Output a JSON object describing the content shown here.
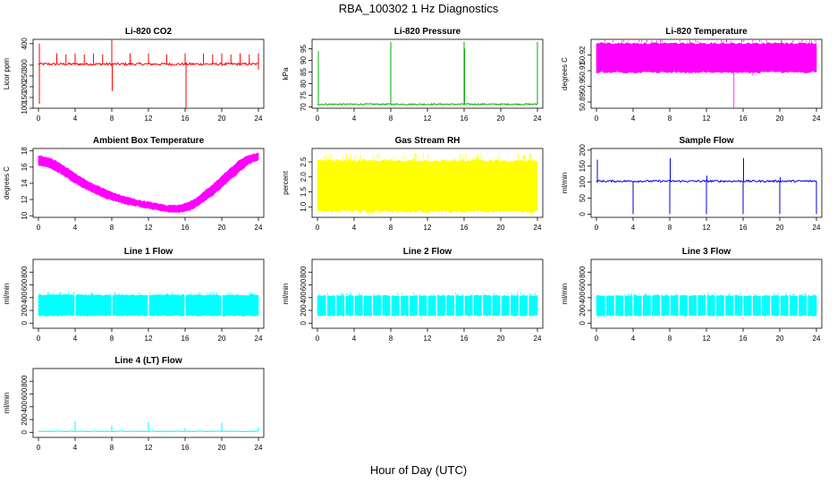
{
  "title": "RBA_100302  1 Hz Diagnostics",
  "xlabel": "Hour of Day (UTC)",
  "chart_data": [
    {
      "type": "line",
      "title": "Li-820 CO2",
      "ylabel": "Licor ppm",
      "color": "#ff0000",
      "xlim": [
        0,
        24
      ],
      "xticks": [
        0,
        4,
        8,
        12,
        16,
        20,
        24
      ],
      "ylim": [
        100,
        420
      ],
      "yticks": [
        100,
        150,
        200,
        250,
        300,
        400
      ],
      "baseline": 305,
      "noise": 6,
      "spikes": [
        {
          "x": 0.1,
          "y": 120
        },
        {
          "x": 0.1,
          "y": 400
        },
        {
          "x": 2,
          "y": 355
        },
        {
          "x": 3,
          "y": 350
        },
        {
          "x": 4,
          "y": 355
        },
        {
          "x": 5,
          "y": 350
        },
        {
          "x": 6,
          "y": 355
        },
        {
          "x": 7,
          "y": 350
        },
        {
          "x": 8,
          "y": 420
        },
        {
          "x": 8.05,
          "y": 180
        },
        {
          "x": 10,
          "y": 355
        },
        {
          "x": 12,
          "y": 355
        },
        {
          "x": 14,
          "y": 350
        },
        {
          "x": 16,
          "y": 355
        },
        {
          "x": 16.1,
          "y": 100
        },
        {
          "x": 18,
          "y": 355
        },
        {
          "x": 19,
          "y": 350
        },
        {
          "x": 20,
          "y": 355
        },
        {
          "x": 21,
          "y": 350
        },
        {
          "x": 22,
          "y": 355
        },
        {
          "x": 23,
          "y": 350
        },
        {
          "x": 24,
          "y": 355
        },
        {
          "x": 24,
          "y": 280
        }
      ]
    },
    {
      "type": "line",
      "title": "Li-820 Pressure",
      "ylabel": "kPa",
      "color": "#00b000",
      "xlim": [
        0,
        24
      ],
      "xticks": [
        0,
        4,
        8,
        12,
        16,
        20,
        24
      ],
      "ylim": [
        69.5,
        99
      ],
      "yticks": [
        70,
        75,
        80,
        85,
        90,
        95
      ],
      "baseline": 71.2,
      "noise": 0.3,
      "spikes": [
        {
          "x": 0.1,
          "y": 94
        },
        {
          "x": 0.1,
          "y": 84
        },
        {
          "x": 8,
          "y": 98
        },
        {
          "x": 16,
          "y": 98
        },
        {
          "x": 16.05,
          "y": 95
        },
        {
          "x": 24,
          "y": 98
        }
      ]
    },
    {
      "type": "area",
      "title": "Li-820 Temperature",
      "ylabel": "degrees C",
      "color": "#ff00ff",
      "xlim": [
        0,
        24
      ],
      "xticks": [
        0,
        4,
        8,
        12,
        16,
        20,
        24
      ],
      "ylim": [
        50.886,
        50.93
      ],
      "yticks": [
        50.89,
        50.9,
        50.91,
        50.92
      ],
      "band": [
        50.9085,
        50.928
      ],
      "spikes": [
        {
          "x": 15,
          "y": 50.886
        },
        {
          "x": 17,
          "y": 50.907
        }
      ]
    },
    {
      "type": "area",
      "title": "Ambient Box Temperature",
      "ylabel": "degrees C",
      "color": "#ff00ff",
      "xlim": [
        0,
        24
      ],
      "xticks": [
        0,
        4,
        8,
        12,
        16,
        20,
        24
      ],
      "ylim": [
        9.8,
        18.3
      ],
      "yticks": [
        10,
        12,
        14,
        16,
        18
      ],
      "x": [
        0,
        1,
        2,
        3,
        4,
        5,
        6,
        7,
        8,
        9,
        10,
        11,
        12,
        13,
        14,
        15,
        16,
        17,
        18,
        19,
        20,
        21,
        22,
        23,
        24
      ],
      "y_low": [
        16.3,
        16.1,
        15.6,
        14.9,
        14.1,
        13.5,
        12.9,
        12.4,
        12.0,
        11.7,
        11.4,
        11.2,
        11.0,
        10.8,
        10.6,
        10.5,
        10.6,
        11.0,
        11.8,
        12.6,
        13.6,
        14.6,
        15.6,
        16.5,
        17.0
      ],
      "y_high": [
        17.3,
        17.1,
        16.6,
        15.9,
        15.1,
        14.4,
        13.8,
        13.3,
        12.8,
        12.4,
        12.1,
        11.8,
        11.6,
        11.4,
        11.2,
        11.2,
        11.4,
        11.9,
        12.8,
        13.7,
        14.8,
        15.8,
        16.8,
        17.4,
        17.6
      ]
    },
    {
      "type": "area",
      "title": "Gas Stream RH",
      "ylabel": "percent",
      "color": "#ffff00",
      "xlim": [
        0,
        24
      ],
      "xticks": [
        0,
        4,
        8,
        12,
        16,
        20,
        24
      ],
      "ylim": [
        0.65,
        2.95
      ],
      "yticks": [
        1.0,
        1.5,
        2.0,
        2.5
      ],
      "band": [
        0.8,
        2.6
      ]
    },
    {
      "type": "line",
      "title": "Sample Flow",
      "ylabel": "ml/min",
      "color": "#0000dd",
      "xlim": [
        0,
        24
      ],
      "xticks": [
        0,
        4,
        8,
        12,
        16,
        20,
        24
      ],
      "ylim": [
        -10,
        205
      ],
      "yticks": [
        0,
        50,
        100,
        150,
        200
      ],
      "baseline": 103,
      "noise": 3,
      "spikes": [
        {
          "x": 0.1,
          "y": 170
        },
        {
          "x": 4,
          "y": 0
        },
        {
          "x": 8,
          "y": 0
        },
        {
          "x": 8.05,
          "y": 175
        },
        {
          "x": 12,
          "y": 0
        },
        {
          "x": 12.05,
          "y": 120
        },
        {
          "x": 16,
          "y": 0
        },
        {
          "x": 16.05,
          "y": 175
        },
        {
          "x": 20,
          "y": 0
        },
        {
          "x": 20.05,
          "y": 115
        },
        {
          "x": 24,
          "y": 0
        }
      ]
    },
    {
      "type": "area",
      "title": "Line 1 Flow",
      "ylabel": "ml/min",
      "color": "#00ffff",
      "xlim": [
        0,
        24
      ],
      "xticks": [
        0,
        4,
        8,
        12,
        16,
        20,
        24
      ],
      "ylim": [
        -80,
        1000
      ],
      "yticks": [
        0,
        200,
        400,
        600,
        800
      ],
      "band": [
        110,
        450
      ],
      "gaps": [
        4,
        8,
        12,
        16,
        20
      ]
    },
    {
      "type": "area",
      "title": "Line 2 Flow",
      "ylabel": "ml/min",
      "color": "#00ffff",
      "xlim": [
        0,
        24
      ],
      "xticks": [
        0,
        4,
        8,
        12,
        16,
        20,
        24
      ],
      "ylim": [
        -80,
        1000
      ],
      "yticks": [
        0,
        200,
        400,
        600,
        800
      ],
      "band": [
        110,
        440
      ],
      "gaps": [
        1,
        2,
        3,
        4,
        5,
        6,
        7,
        8,
        9,
        10,
        11,
        12,
        13,
        14,
        15,
        16,
        17,
        18,
        19,
        20,
        21,
        22,
        23
      ]
    },
    {
      "type": "area",
      "title": "Line 3 Flow",
      "ylabel": "ml/min",
      "color": "#00ffff",
      "xlim": [
        0,
        24
      ],
      "xticks": [
        0,
        4,
        8,
        12,
        16,
        20,
        24
      ],
      "ylim": [
        -80,
        1000
      ],
      "yticks": [
        0,
        200,
        400,
        600,
        800
      ],
      "band": [
        110,
        440
      ],
      "gaps": [
        1,
        2,
        3,
        4,
        5,
        6,
        7,
        8,
        9,
        10,
        11,
        12,
        13,
        14,
        15,
        16,
        17,
        18,
        19,
        20,
        21,
        22,
        23
      ]
    },
    {
      "type": "line",
      "title": "Line 4 (LT) Flow",
      "ylabel": "ml/min",
      "color": "#00ffff",
      "xlim": [
        0,
        24
      ],
      "xticks": [
        0,
        4,
        8,
        12,
        16,
        20,
        24
      ],
      "ylim": [
        -80,
        1000
      ],
      "yticks": [
        0,
        200,
        400,
        600,
        800
      ],
      "baseline": 15,
      "noise": 6,
      "spikes": [
        {
          "x": 4,
          "y": 170
        },
        {
          "x": 8,
          "y": 100
        },
        {
          "x": 12,
          "y": 160
        },
        {
          "x": 16,
          "y": 70
        },
        {
          "x": 20,
          "y": 150
        },
        {
          "x": 24,
          "y": 80
        }
      ]
    }
  ]
}
